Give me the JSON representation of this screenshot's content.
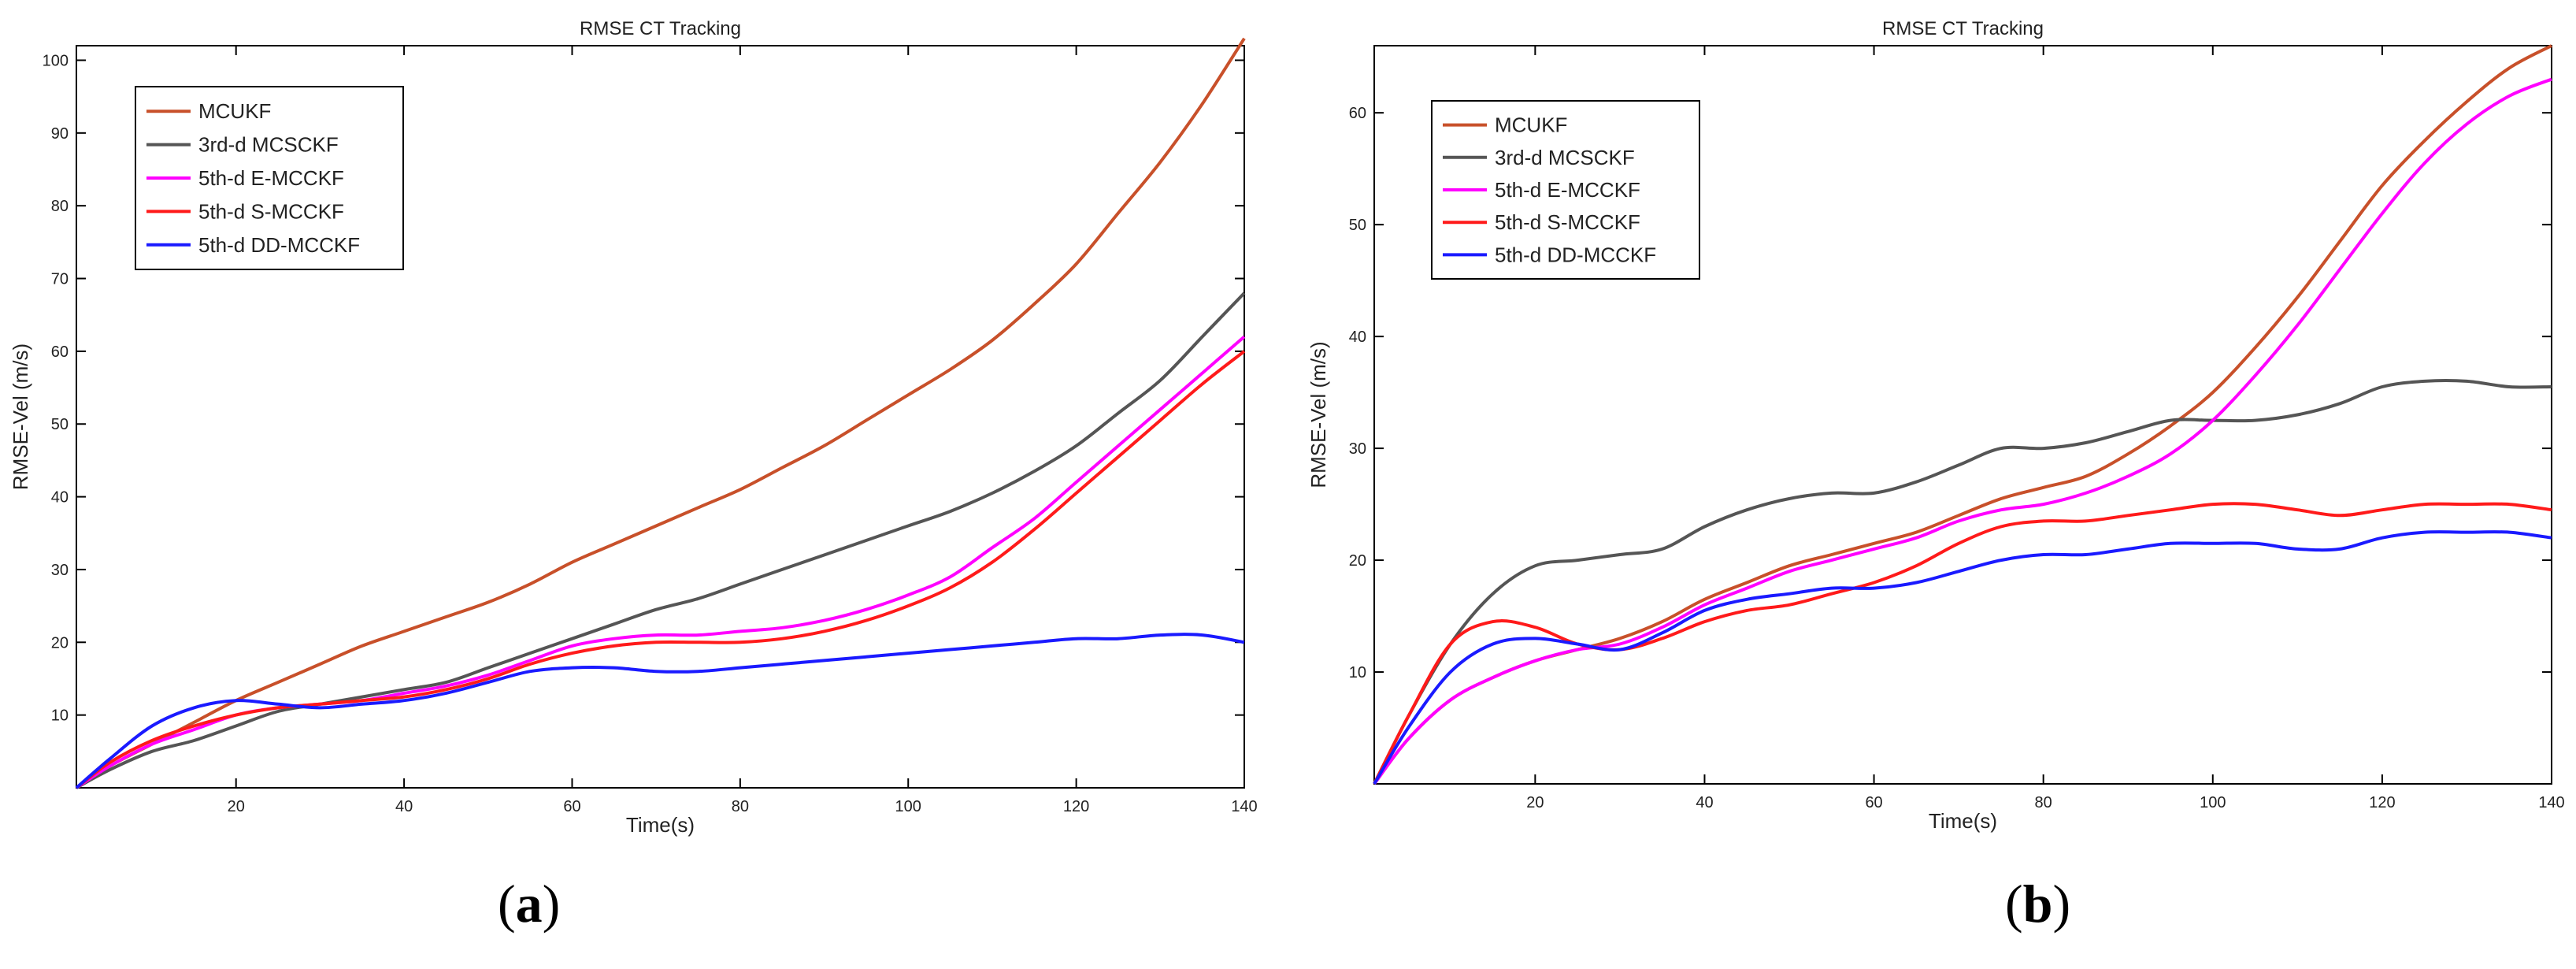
{
  "chart_data": [
    {
      "type": "line",
      "panel": "a",
      "title": "RMSE CT Tracking",
      "xlabel": "Time(s)",
      "ylabel": "RMSE-Vel (m/s)",
      "xlim": [
        1,
        140
      ],
      "ylim": [
        0,
        102
      ],
      "xticks": [
        20,
        40,
        60,
        80,
        100,
        120,
        140
      ],
      "yticks": [
        10,
        20,
        30,
        40,
        50,
        60,
        70,
        80,
        90,
        100
      ],
      "grid": false,
      "legend": "top-left",
      "x": [
        1,
        5,
        10,
        15,
        20,
        25,
        30,
        35,
        40,
        45,
        50,
        55,
        60,
        65,
        70,
        75,
        80,
        85,
        90,
        95,
        100,
        105,
        110,
        115,
        120,
        125,
        130,
        135,
        140
      ],
      "series": [
        {
          "name": "MCUKF",
          "color": "#c8502a",
          "values": [
            0,
            3,
            6,
            9,
            12,
            14.5,
            17,
            19.5,
            21.5,
            23.5,
            25.5,
            28,
            31,
            33.5,
            36,
            38.5,
            41,
            44,
            47,
            50.5,
            54,
            57.5,
            61.5,
            66.5,
            72,
            79,
            86,
            94,
            103
          ]
        },
        {
          "name": "3rd-d MCSCKF",
          "color": "#555555",
          "values": [
            0,
            2.5,
            5,
            6.5,
            8.5,
            10.5,
            11.5,
            12.5,
            13.5,
            14.5,
            16.5,
            18.5,
            20.5,
            22.5,
            24.5,
            26,
            28,
            30,
            32,
            34,
            36,
            38,
            40.5,
            43.5,
            47,
            51.5,
            56,
            62,
            68
          ]
        },
        {
          "name": "5th-d E-MCCKF",
          "color": "#ff00ff",
          "values": [
            0,
            3,
            6,
            8,
            10,
            11,
            11.5,
            12,
            13,
            14,
            15.5,
            17.5,
            19.5,
            20.5,
            21,
            21,
            21.5,
            22,
            23,
            24.5,
            26.5,
            29,
            33,
            37,
            42,
            47,
            52,
            57,
            62
          ]
        },
        {
          "name": "5th-d S-MCCKF",
          "color": "#ff1a1a",
          "values": [
            0,
            3.5,
            6.5,
            8.5,
            10,
            11,
            11.5,
            12,
            12.5,
            13.5,
            15,
            17,
            18.5,
            19.5,
            20,
            20,
            20,
            20.5,
            21.5,
            23,
            25,
            27.5,
            31,
            35.5,
            40.5,
            45.5,
            50.5,
            55.5,
            60
          ]
        },
        {
          "name": "5th-d DD-MCCKF",
          "color": "#1a1aff",
          "values": [
            0,
            4,
            8.5,
            11,
            12,
            11.5,
            11,
            11.5,
            12,
            13,
            14.5,
            16,
            16.5,
            16.5,
            16,
            16,
            16.5,
            17,
            17.5,
            18,
            18.5,
            19,
            19.5,
            20,
            20.5,
            20.5,
            21,
            21,
            20
          ]
        }
      ]
    },
    {
      "type": "line",
      "panel": "b",
      "title": "RMSE CT Tracking",
      "xlabel": "Time(s)",
      "ylabel": "RMSE-Vel (m/s)",
      "xlim": [
        1,
        140
      ],
      "ylim": [
        0,
        66
      ],
      "xticks": [
        20,
        40,
        60,
        80,
        100,
        120,
        140
      ],
      "yticks": [
        10,
        20,
        30,
        40,
        50,
        60
      ],
      "grid": false,
      "legend": "top-left",
      "x": [
        1,
        5,
        10,
        15,
        20,
        25,
        30,
        35,
        40,
        45,
        50,
        55,
        60,
        65,
        70,
        75,
        80,
        85,
        90,
        95,
        100,
        105,
        110,
        115,
        120,
        125,
        130,
        135,
        140
      ],
      "series": [
        {
          "name": "MCUKF",
          "color": "#c8502a",
          "values": [
            0,
            4,
            7.5,
            9.5,
            11,
            12,
            13,
            14.5,
            16.5,
            18,
            19.5,
            20.5,
            21.5,
            22.5,
            24,
            25.5,
            26.5,
            27.5,
            29.5,
            32,
            35,
            39,
            43.5,
            48.5,
            53.5,
            57.5,
            61,
            64,
            66
          ]
        },
        {
          "name": "3rd-d MCSCKF",
          "color": "#555555",
          "values": [
            0,
            6,
            12.5,
            17,
            19.5,
            20,
            20.5,
            21,
            23,
            24.5,
            25.5,
            26,
            26,
            27,
            28.5,
            30,
            30,
            30.5,
            31.5,
            32.5,
            32.5,
            32.5,
            33,
            34,
            35.5,
            36,
            36,
            35.5,
            35.5
          ]
        },
        {
          "name": "5th-d E-MCCKF",
          "color": "#ff00ff",
          "values": [
            0,
            4,
            7.5,
            9.5,
            11,
            12,
            12.5,
            14,
            16,
            17.5,
            19,
            20,
            21,
            22,
            23.5,
            24.5,
            25,
            26,
            27.5,
            29.5,
            32.5,
            36.5,
            41,
            46,
            51,
            55.5,
            59,
            61.5,
            63
          ]
        },
        {
          "name": "5th-d S-MCCKF",
          "color": "#ff1a1a",
          "values": [
            0,
            6,
            12.5,
            14.5,
            14,
            12.5,
            12,
            13,
            14.5,
            15.5,
            16,
            17,
            18,
            19.5,
            21.5,
            23,
            23.5,
            23.5,
            24,
            24.5,
            25,
            25,
            24.5,
            24,
            24.5,
            25,
            25,
            25,
            24.5
          ]
        },
        {
          "name": "5th-d DD-MCCKF",
          "color": "#1a1aff",
          "values": [
            0,
            5,
            10,
            12.5,
            13,
            12.5,
            12,
            13.5,
            15.5,
            16.5,
            17,
            17.5,
            17.5,
            18,
            19,
            20,
            20.5,
            20.5,
            21,
            21.5,
            21.5,
            21.5,
            21,
            21,
            22,
            22.5,
            22.5,
            22.5,
            22
          ]
        }
      ]
    }
  ],
  "panel_labels": {
    "a": "a",
    "b": "b"
  }
}
